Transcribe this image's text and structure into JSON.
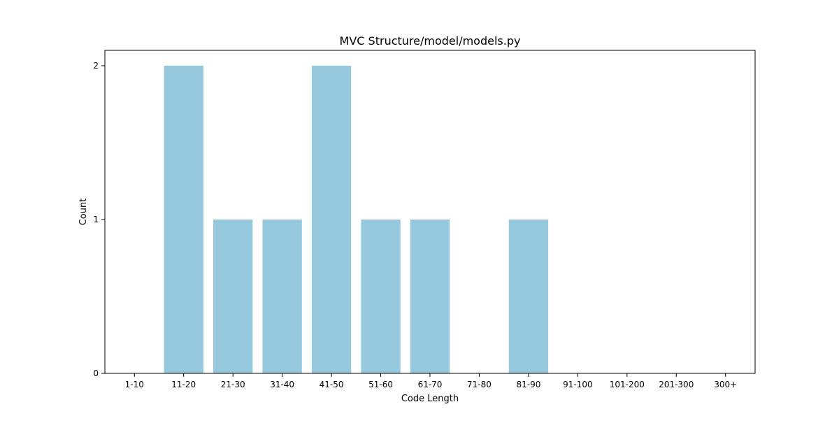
{
  "chart_data": {
    "type": "bar",
    "title": "MVC Structure/model/models.py",
    "xlabel": "Code Length",
    "ylabel": "Count",
    "categories": [
      "1-10",
      "11-20",
      "21-30",
      "31-40",
      "41-50",
      "51-60",
      "61-70",
      "71-80",
      "81-90",
      "91-100",
      "101-200",
      "201-300",
      "300+"
    ],
    "values": [
      0,
      2,
      1,
      1,
      2,
      1,
      1,
      0,
      1,
      0,
      0,
      0,
      0
    ],
    "yticks": [
      "0",
      "1",
      "2"
    ],
    "ylim": [
      0,
      2.1
    ],
    "grid": false,
    "colors": {
      "bar": "#96c9dd",
      "axis": "#000000"
    }
  }
}
